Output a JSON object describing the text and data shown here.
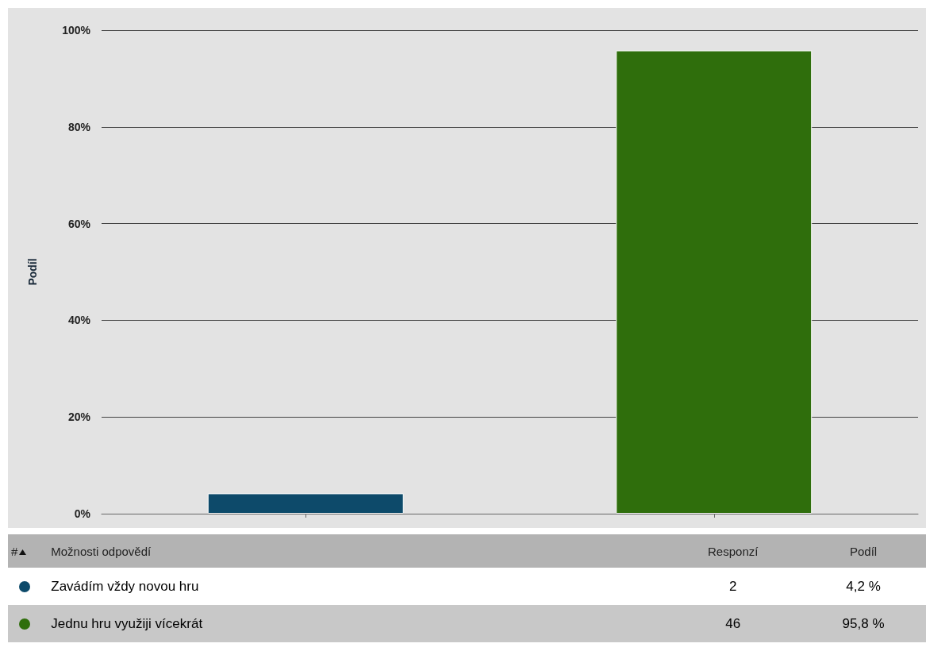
{
  "chart_data": {
    "type": "bar",
    "ylabel": "Podíl",
    "categories": [
      null,
      null
    ],
    "values": [
      4.2,
      95.8
    ],
    "colors": [
      "#0d4a6a",
      "#2f6e0c"
    ],
    "ylim": [
      0,
      100
    ],
    "yticks": [
      {
        "value": 0,
        "label": "0%"
      },
      {
        "value": 20,
        "label": "20%"
      },
      {
        "value": 40,
        "label": "40%"
      },
      {
        "value": 60,
        "label": "60%"
      },
      {
        "value": 80,
        "label": "80%"
      },
      {
        "value": 100,
        "label": "100%"
      }
    ],
    "grid": "y",
    "tick_labels": "y",
    "annotations": [
      "#",
      "Možnosti odpovědí",
      "Responzí",
      "Podíl",
      "Zavádím vždy novou hru",
      "2",
      "4,2 %",
      "Jednu hru využiji vícekrát",
      "46",
      "95,8 %"
    ]
  }
}
